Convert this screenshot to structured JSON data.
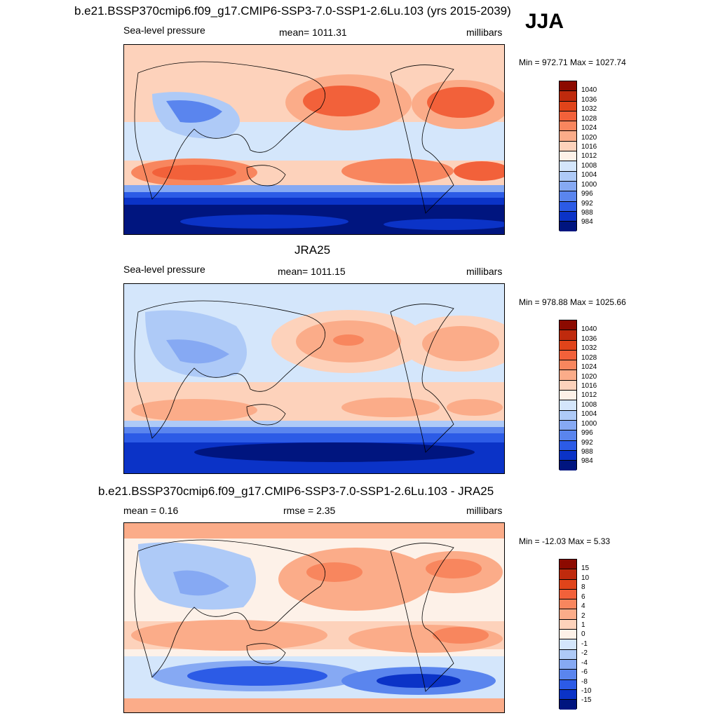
{
  "season": "JJA",
  "panels": [
    {
      "title": "b.e21.BSSP370cmip6.f09_g17.CMIP6-SSP3-7.0-SSP1-2.6Lu.103 (yrs 2015-2039)",
      "left": "Sea-level pressure",
      "center": "mean= 1011.31",
      "right": "millibars",
      "minmax": "Min = 972.71 Max = 1027.74",
      "levels": [
        "1040",
        "1036",
        "1032",
        "1028",
        "1024",
        "1020",
        "1016",
        "1012",
        "1008",
        "1004",
        "1000",
        "996",
        "992",
        "988",
        "984"
      ]
    },
    {
      "title": "JRA25",
      "left": "Sea-level pressure",
      "center": "mean= 1011.15",
      "right": "millibars",
      "minmax": "Min = 978.88 Max = 1025.66",
      "levels": [
        "1040",
        "1036",
        "1032",
        "1028",
        "1024",
        "1020",
        "1016",
        "1012",
        "1008",
        "1004",
        "1000",
        "996",
        "992",
        "988",
        "984"
      ]
    },
    {
      "title": "b.e21.BSSP370cmip6.f09_g17.CMIP6-SSP3-7.0-SSP1-2.6Lu.103 - JRA25",
      "left": "mean =   0.16",
      "center": "rmse =   2.35",
      "right": "millibars",
      "minmax": "Min = -12.03 Max =   5.33",
      "levels": [
        "15",
        "10",
        "8",
        "6",
        "4",
        "2",
        "1",
        "0",
        "-1",
        "-2",
        "-4",
        "-6",
        "-8",
        "-10",
        "-15"
      ]
    }
  ],
  "colors": [
    "#8c0a00",
    "#bf2a0d",
    "#e0441a",
    "#f2613a",
    "#f8865e",
    "#fbac89",
    "#fdd2bb",
    "#fdf1e8",
    "#d4e6fb",
    "#aecaf7",
    "#86a9f3",
    "#5a85ee",
    "#2c5be6",
    "#0b33c7",
    "#00157f"
  ]
}
